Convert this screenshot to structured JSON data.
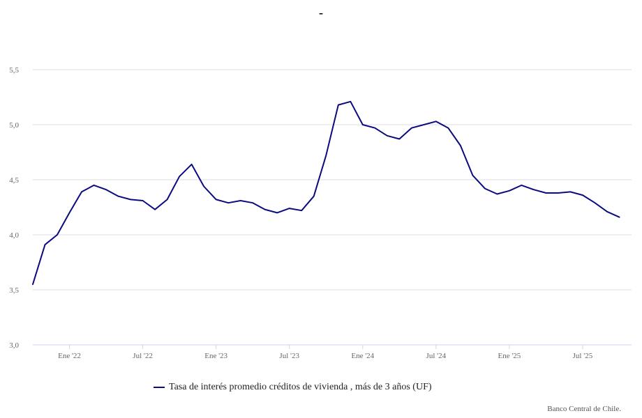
{
  "title": "-",
  "credit": "Banco Central de Chile.",
  "colors": {
    "series": "#0b0b80",
    "grid": "#dcdce6",
    "axis": "#ccd6eb",
    "tick_text": "#666666"
  },
  "chart_data": {
    "type": "line",
    "title": "-",
    "xlabel": "",
    "ylabel": "",
    "ylim": [
      3.0,
      5.5
    ],
    "y_ticks": [
      "3,0",
      "3,5",
      "4,0",
      "4,5",
      "5,0",
      "5,5"
    ],
    "y_tick_values": [
      3.0,
      3.5,
      4.0,
      4.5,
      5.0,
      5.5
    ],
    "x_tick_labels": [
      "Ene '22",
      "Jul '22",
      "Ene '23",
      "Jul '23",
      "Ene '24",
      "Jul '24",
      "Ene '25",
      "Jul '25"
    ],
    "x_tick_months": [
      "2022-01",
      "2022-07",
      "2023-01",
      "2023-07",
      "2024-01",
      "2024-07",
      "2025-01",
      "2025-07"
    ],
    "x_range": [
      "2021-10",
      "2025-11"
    ],
    "grid": true,
    "legend": "bottom-center",
    "series": [
      {
        "name": "Tasa de interés promedio créditos de vivienda , más de 3 años (UF)",
        "x": [
          "2021-10",
          "2021-11",
          "2021-12",
          "2022-01",
          "2022-02",
          "2022-03",
          "2022-04",
          "2022-05",
          "2022-06",
          "2022-07",
          "2022-08",
          "2022-09",
          "2022-10",
          "2022-11",
          "2022-12",
          "2023-01",
          "2023-02",
          "2023-03",
          "2023-04",
          "2023-05",
          "2023-06",
          "2023-07",
          "2023-08",
          "2023-09",
          "2023-10",
          "2023-11",
          "2023-12",
          "2024-01",
          "2024-02",
          "2024-03",
          "2024-04",
          "2024-05",
          "2024-06",
          "2024-07",
          "2024-08",
          "2024-09",
          "2024-10",
          "2024-11",
          "2024-12",
          "2025-01",
          "2025-02",
          "2025-03",
          "2025-04",
          "2025-05",
          "2025-06",
          "2025-07",
          "2025-08",
          "2025-09",
          "2025-10"
        ],
        "values": [
          3.55,
          3.91,
          4.0,
          4.2,
          4.39,
          4.45,
          4.41,
          4.35,
          4.32,
          4.31,
          4.23,
          4.32,
          4.53,
          4.64,
          4.44,
          4.32,
          4.29,
          4.31,
          4.29,
          4.23,
          4.2,
          4.24,
          4.22,
          4.35,
          4.72,
          5.18,
          5.21,
          5.0,
          4.97,
          4.9,
          4.87,
          4.97,
          5.0,
          5.03,
          4.97,
          4.81,
          4.54,
          4.42,
          4.37,
          4.4,
          4.45,
          4.41,
          4.38,
          4.38,
          4.39,
          4.36,
          4.29,
          4.21,
          4.16
        ]
      }
    ]
  }
}
